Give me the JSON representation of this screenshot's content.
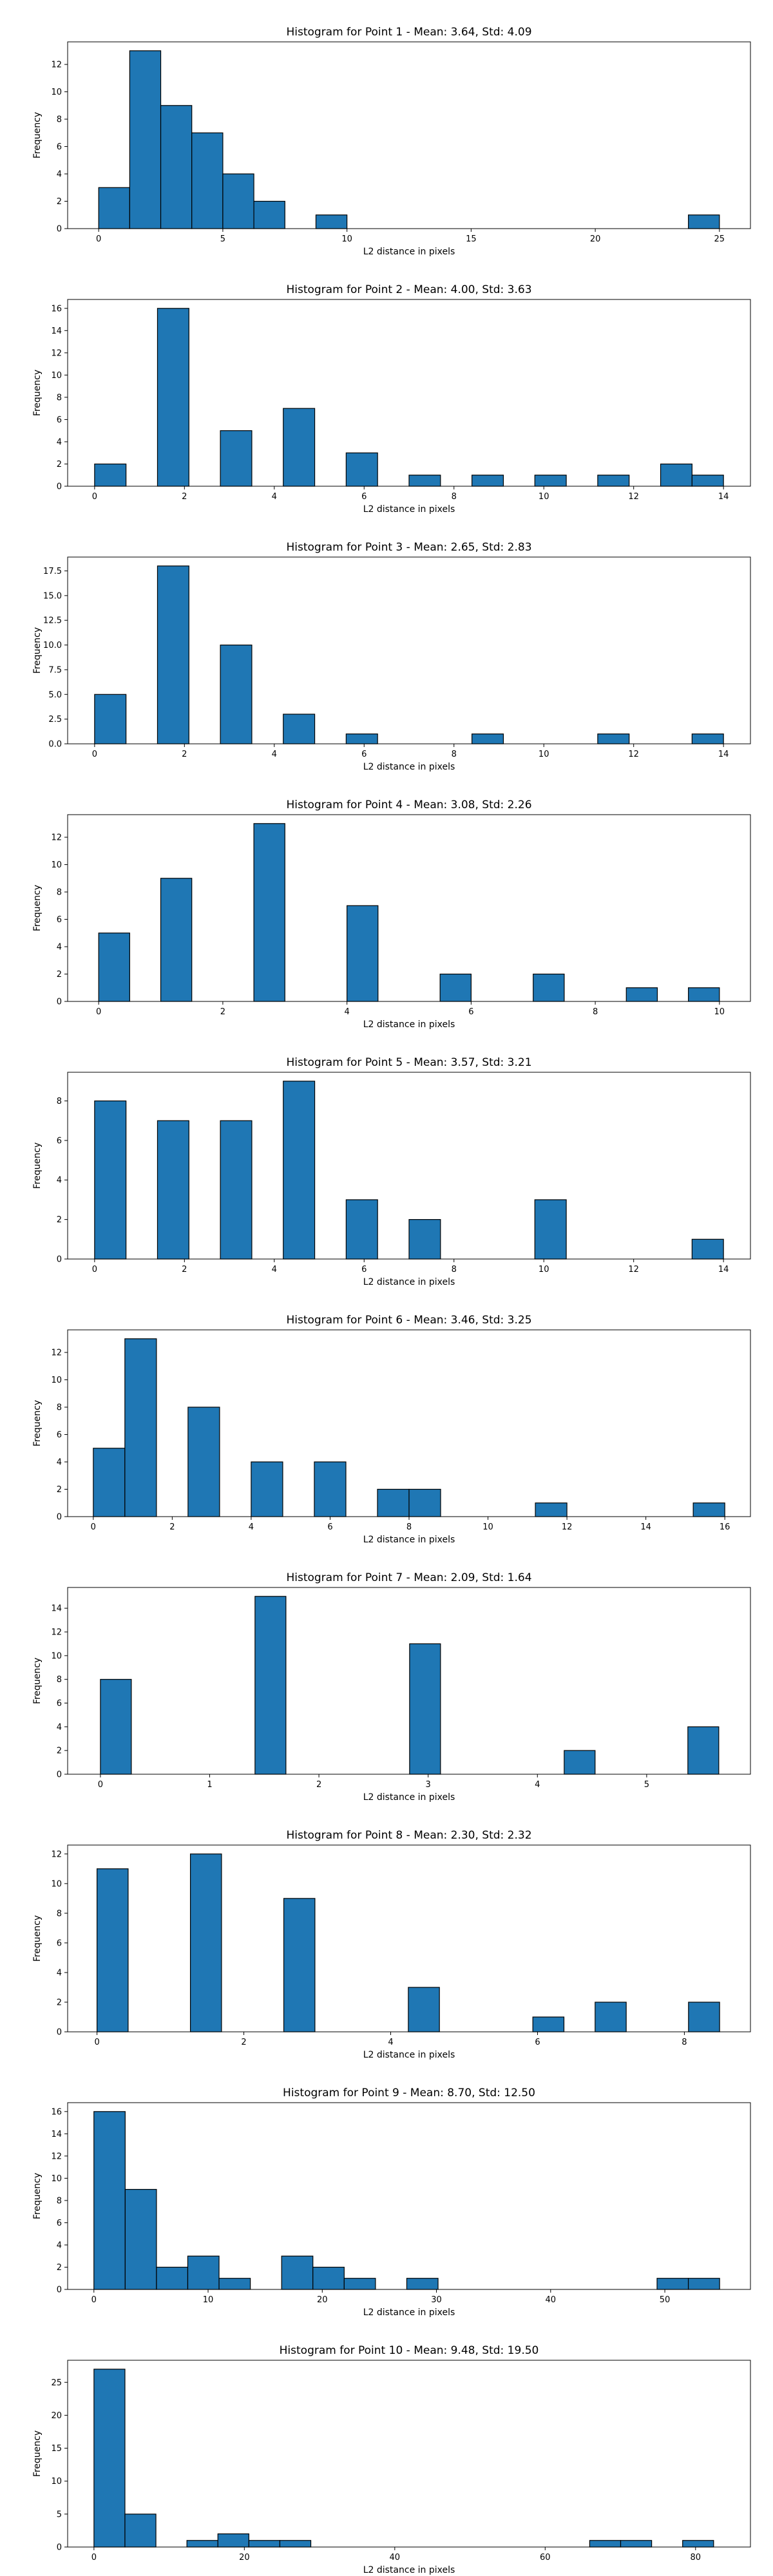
{
  "chart_data": [
    {
      "type": "bar",
      "title": "Histogram for Point 1 - Mean: 3.64, Std: 4.09",
      "xlabel": "L2 distance in pixels",
      "ylabel": "Frequency",
      "xlim": [
        -1.25,
        26.25
      ],
      "ylim": [
        0,
        13.65
      ],
      "xticks": [
        0,
        5,
        10,
        15,
        20,
        25
      ],
      "yticks": [
        0,
        2,
        4,
        6,
        8,
        10,
        12
      ],
      "bin_width": 1.25,
      "bins": [
        [
          0,
          3
        ],
        [
          1.25,
          13
        ],
        [
          2.5,
          9
        ],
        [
          3.75,
          7
        ],
        [
          5,
          4
        ],
        [
          6.25,
          2
        ],
        [
          8.75,
          1
        ],
        [
          23.75,
          1
        ]
      ],
      "color": "#1f77b4"
    },
    {
      "type": "bar",
      "title": "Histogram for Point 2 - Mean: 4.00, Std: 3.63",
      "xlabel": "L2 distance in pixels",
      "ylabel": "Frequency",
      "xlim": [
        -0.6,
        14.6
      ],
      "ylim": [
        0,
        16.8
      ],
      "xticks": [
        0,
        2,
        4,
        6,
        8,
        10,
        12,
        14
      ],
      "yticks": [
        0,
        2,
        4,
        6,
        8,
        10,
        12,
        14,
        16
      ],
      "bin_width": 0.7,
      "bins": [
        [
          0,
          2
        ],
        [
          1.4,
          16
        ],
        [
          2.8,
          5
        ],
        [
          4.2,
          7
        ],
        [
          5.6,
          3
        ],
        [
          7,
          1
        ],
        [
          8.4,
          1
        ],
        [
          9.8,
          1
        ],
        [
          11.2,
          1
        ],
        [
          12.6,
          2
        ],
        [
          13.3,
          1
        ]
      ],
      "color": "#1f77b4"
    },
    {
      "type": "bar",
      "title": "Histogram for Point 3 - Mean: 2.65, Std: 2.83",
      "xlabel": "L2 distance in pixels",
      "ylabel": "Frequency",
      "xlim": [
        -0.6,
        14.6
      ],
      "ylim": [
        0,
        18.9
      ],
      "xticks": [
        0,
        2,
        4,
        6,
        8,
        10,
        12,
        14
      ],
      "yticks": [
        0.0,
        2.5,
        5.0,
        7.5,
        10.0,
        12.5,
        15.0,
        17.5
      ],
      "ytick_labels": [
        "0.0",
        "2.5",
        "5.0",
        "7.5",
        "10.0",
        "12.5",
        "15.0",
        "17.5"
      ],
      "bin_width": 0.7,
      "bins": [
        [
          0,
          5
        ],
        [
          1.4,
          18
        ],
        [
          2.8,
          10
        ],
        [
          4.2,
          3
        ],
        [
          5.6,
          1
        ],
        [
          8.4,
          1
        ],
        [
          11.2,
          1
        ],
        [
          13.3,
          1
        ]
      ],
      "color": "#1f77b4"
    },
    {
      "type": "bar",
      "title": "Histogram for Point 4 - Mean: 3.08, Std: 2.26",
      "xlabel": "L2 distance in pixels",
      "ylabel": "Frequency",
      "xlim": [
        -0.5,
        10.5
      ],
      "ylim": [
        0,
        13.65
      ],
      "xticks": [
        0,
        2,
        4,
        6,
        8,
        10
      ],
      "yticks": [
        0,
        2,
        4,
        6,
        8,
        10,
        12
      ],
      "bin_width": 0.5,
      "bins": [
        [
          0,
          5
        ],
        [
          1.0,
          9
        ],
        [
          2.5,
          13
        ],
        [
          4.0,
          7
        ],
        [
          5.5,
          2
        ],
        [
          7.0,
          2
        ],
        [
          8.5,
          1
        ],
        [
          9.5,
          1
        ]
      ],
      "color": "#1f77b4"
    },
    {
      "type": "bar",
      "title": "Histogram for Point 5 - Mean: 3.57, Std: 3.21",
      "xlabel": "L2 distance in pixels",
      "ylabel": "Frequency",
      "xlim": [
        -0.6,
        14.6
      ],
      "ylim": [
        0,
        9.45
      ],
      "xticks": [
        0,
        2,
        4,
        6,
        8,
        10,
        12,
        14
      ],
      "yticks": [
        0,
        2,
        4,
        6,
        8
      ],
      "bin_width": 0.7,
      "bins": [
        [
          0,
          8
        ],
        [
          1.4,
          7
        ],
        [
          2.8,
          7
        ],
        [
          4.2,
          9
        ],
        [
          5.6,
          3
        ],
        [
          7,
          2
        ],
        [
          9.8,
          3
        ],
        [
          13.3,
          1
        ]
      ],
      "color": "#1f77b4"
    },
    {
      "type": "bar",
      "title": "Histogram for Point 6 - Mean: 3.46, Std: 3.25",
      "xlabel": "L2 distance in pixels",
      "ylabel": "Frequency",
      "xlim": [
        -0.65,
        16.65
      ],
      "ylim": [
        0,
        13.65
      ],
      "xticks": [
        0,
        2,
        4,
        6,
        8,
        10,
        12,
        14,
        16
      ],
      "yticks": [
        0,
        2,
        4,
        6,
        8,
        10,
        12
      ],
      "bin_width": 0.8,
      "bins": [
        [
          0,
          5
        ],
        [
          0.8,
          13
        ],
        [
          2.4,
          8
        ],
        [
          4.0,
          4
        ],
        [
          5.6,
          4
        ],
        [
          7.2,
          2
        ],
        [
          8.0,
          2
        ],
        [
          11.2,
          1
        ],
        [
          15.2,
          1
        ]
      ],
      "color": "#1f77b4"
    },
    {
      "type": "bar",
      "title": "Histogram for Point 7 - Mean: 2.09, Std: 1.64",
      "xlabel": "L2 distance in pixels",
      "ylabel": "Frequency",
      "xlim": [
        -0.3,
        5.95
      ],
      "ylim": [
        0,
        15.75
      ],
      "xticks": [
        0,
        1,
        2,
        3,
        4,
        5
      ],
      "yticks": [
        0,
        2,
        4,
        6,
        8,
        10,
        12,
        14
      ],
      "bin_width": 0.283,
      "bins": [
        [
          0,
          8
        ],
        [
          1.415,
          15
        ],
        [
          2.83,
          11
        ],
        [
          4.245,
          2
        ],
        [
          5.377,
          4
        ]
      ],
      "color": "#1f77b4"
    },
    {
      "type": "bar",
      "title": "Histogram for Point 8 - Mean: 2.30, Std: 2.32",
      "xlabel": "L2 distance in pixels",
      "ylabel": "Frequency",
      "xlim": [
        -0.4,
        8.9
      ],
      "ylim": [
        0,
        12.6
      ],
      "xticks": [
        0,
        2,
        4,
        6,
        8
      ],
      "yticks": [
        0,
        2,
        4,
        6,
        8,
        10,
        12
      ],
      "bin_width": 0.424,
      "bins": [
        [
          0,
          11
        ],
        [
          1.272,
          12
        ],
        [
          2.544,
          9
        ],
        [
          4.24,
          3
        ],
        [
          5.936,
          1
        ],
        [
          6.784,
          2
        ],
        [
          8.056,
          2
        ]
      ],
      "color": "#1f77b4"
    },
    {
      "type": "bar",
      "title": "Histogram for Point 9 - Mean: 8.70, Std: 12.50",
      "xlabel": "L2 distance in pixels",
      "ylabel": "Frequency",
      "xlim": [
        -2.3,
        57.5
      ],
      "ylim": [
        0,
        16.8
      ],
      "xticks": [
        0,
        10,
        20,
        30,
        40,
        50
      ],
      "yticks": [
        0,
        2,
        4,
        6,
        8,
        10,
        12,
        14,
        16
      ],
      "bin_width": 2.74,
      "bins": [
        [
          0,
          16
        ],
        [
          2.74,
          9
        ],
        [
          5.48,
          2
        ],
        [
          8.22,
          3
        ],
        [
          10.96,
          1
        ],
        [
          16.44,
          3
        ],
        [
          19.18,
          2
        ],
        [
          21.92,
          1
        ],
        [
          27.4,
          1
        ],
        [
          49.32,
          1
        ],
        [
          52.06,
          1
        ]
      ],
      "color": "#1f77b4"
    },
    {
      "type": "bar",
      "title": "Histogram for Point 10 - Mean: 9.48, Std: 19.50",
      "xlabel": "L2 distance in pixels",
      "ylabel": "Frequency",
      "xlim": [
        -3.5,
        87.3
      ],
      "ylim": [
        0,
        28.35
      ],
      "xticks": [
        0,
        20,
        40,
        60,
        80
      ],
      "yticks": [
        0,
        5,
        10,
        15,
        20,
        25
      ],
      "bin_width": 4.12,
      "bins": [
        [
          0,
          27
        ],
        [
          4.12,
          5
        ],
        [
          12.36,
          1
        ],
        [
          16.48,
          2
        ],
        [
          20.6,
          1
        ],
        [
          24.72,
          1
        ],
        [
          65.92,
          1
        ],
        [
          70.04,
          1
        ],
        [
          78.28,
          1
        ]
      ],
      "color": "#1f77b4"
    }
  ]
}
